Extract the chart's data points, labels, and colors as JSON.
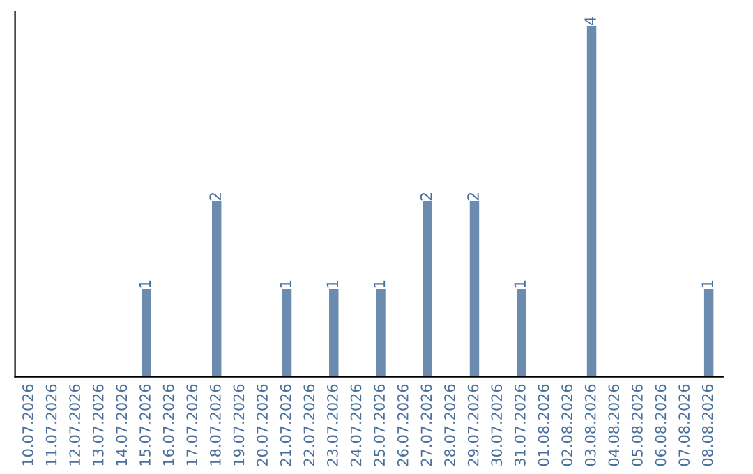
{
  "chart_data": {
    "type": "bar",
    "categories": [
      "10.07.2026",
      "11.07.2026",
      "12.07.2026",
      "13.07.2026",
      "14.07.2026",
      "15.07.2026",
      "16.07.2026",
      "17.07.2026",
      "18.07.2026",
      "19.07.2026",
      "20.07.2026",
      "21.07.2026",
      "22.07.2026",
      "23.07.2026",
      "24.07.2026",
      "25.07.2026",
      "26.07.2026",
      "27.07.2026",
      "28.07.2026",
      "29.07.2026",
      "30.07.2026",
      "31.07.2026",
      "01.08.2026",
      "02.08.2026",
      "03.08.2026",
      "04.08.2026",
      "05.08.2026",
      "06.08.2026",
      "07.08.2026",
      "08.08.2026"
    ],
    "values": [
      0,
      0,
      0,
      0,
      0,
      1,
      0,
      0,
      2,
      0,
      0,
      1,
      0,
      1,
      0,
      1,
      0,
      2,
      0,
      2,
      0,
      1,
      0,
      0,
      4,
      0,
      0,
      0,
      0,
      1
    ],
    "value_labels": [
      null,
      null,
      null,
      null,
      null,
      "1",
      null,
      null,
      "2",
      null,
      null,
      "1",
      null,
      "1",
      null,
      "1",
      null,
      "2",
      null,
      "2",
      null,
      "1",
      null,
      null,
      "4",
      null,
      null,
      null,
      null,
      "1"
    ],
    "color": "#6b8cae",
    "grid": false,
    "legend": false
  }
}
